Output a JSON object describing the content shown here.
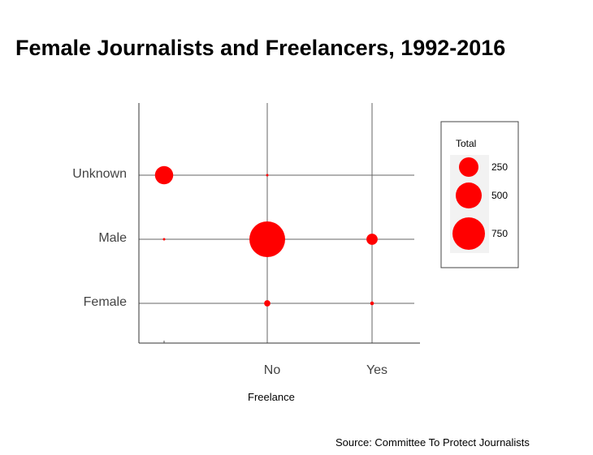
{
  "chart_data": {
    "type": "scatter",
    "title": "Female Journalists and Freelancers, 1992-2016",
    "xlabel": "Freelance",
    "ylabel": "",
    "x_categories": [
      "",
      "No",
      "Yes"
    ],
    "y_categories": [
      "Female",
      "Male",
      "Unknown"
    ],
    "points": [
      {
        "x": "",
        "y": "Unknown",
        "total": 120
      },
      {
        "x": "",
        "y": "Male",
        "total": 1
      },
      {
        "x": "No",
        "y": "Unknown",
        "total": 1
      },
      {
        "x": "No",
        "y": "Male",
        "total": 460
      },
      {
        "x": "No",
        "y": "Female",
        "total": 14
      },
      {
        "x": "Yes",
        "y": "Male",
        "total": 45
      },
      {
        "x": "Yes",
        "y": "Female",
        "total": 5
      }
    ],
    "legend": {
      "title": "Total",
      "position": "right",
      "entries": [
        {
          "label": "250",
          "value": 250
        },
        {
          "label": "500",
          "value": 500
        },
        {
          "label": "750",
          "value": 750
        }
      ]
    },
    "grid": true,
    "color": "#ff0000"
  },
  "source": "Source: Committee To Protect Journalists"
}
